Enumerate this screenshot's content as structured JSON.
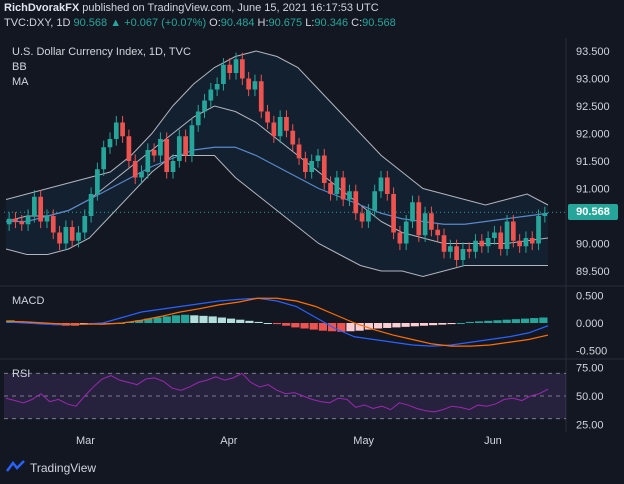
{
  "header": {
    "publisher": "RichDvorakFX",
    "published_text": "published on TradingView.com, June 15, 2021 16:17:53 UTC"
  },
  "ohlc": {
    "symbol": "TVC:DXY, 1D",
    "last": "90.568",
    "change": "▲ +0.067 (+0.07%)",
    "o_label": "O:",
    "o": "90.484",
    "h_label": "H:",
    "h": "90.675",
    "l_label": "L:",
    "l": "90.346",
    "c_label": "C:",
    "c": "90.568"
  },
  "legend": {
    "title": "U.S. Dollar Currency Index, 1D, TVC",
    "bb": "BB",
    "ma": "MA",
    "macd": "MACD",
    "rsi": "RSI"
  },
  "footer": {
    "brand": "TradingView"
  },
  "colors": {
    "up": "#26a69a",
    "down": "#ef5350",
    "band": "#b2b5be",
    "ma": "#5a88c8",
    "macd": "#2962ff",
    "signal": "#ff6d00",
    "rsi": "#9c27b0"
  },
  "chart_data": {
    "type": "candlestick",
    "title": "U.S. Dollar Currency Index, 1D, TVC",
    "x_tick_labels": [
      "Mar",
      "Apr",
      "May",
      "Jun"
    ],
    "price_axis": {
      "ticks": [
        "93.500",
        "93.000",
        "92.500",
        "92.000",
        "91.500",
        "91.000",
        "90.500",
        "90.000",
        "89.500"
      ],
      "range": [
        89.3,
        93.7
      ]
    },
    "last_price": "90.568",
    "macd_axis": {
      "ticks": [
        "0.500",
        "0.000",
        "-0.500"
      ],
      "range": [
        -0.6,
        0.6
      ]
    },
    "rsi_axis": {
      "ticks": [
        "75.00",
        "50.00",
        "25.00"
      ],
      "range": [
        20,
        80
      ]
    },
    "closes": [
      90.45,
      90.4,
      90.35,
      90.5,
      90.85,
      90.4,
      90.5,
      90.2,
      90.0,
      90.3,
      90.05,
      90.2,
      90.5,
      90.9,
      91.35,
      91.75,
      91.9,
      92.2,
      91.95,
      91.5,
      91.2,
      91.3,
      91.7,
      91.6,
      91.9,
      91.3,
      91.5,
      91.95,
      91.6,
      92.15,
      92.4,
      92.6,
      92.8,
      92.9,
      93.25,
      93.1,
      93.35,
      93.0,
      92.8,
      92.95,
      92.4,
      92.2,
      91.95,
      92.3,
      92.05,
      91.8,
      91.55,
      91.3,
      91.5,
      91.6,
      91.1,
      90.9,
      91.2,
      90.8,
      90.95,
      90.55,
      90.4,
      90.6,
      90.95,
      91.2,
      90.9,
      90.2,
      90.0,
      90.4,
      90.75,
      90.15,
      90.55,
      90.25,
      90.15,
      89.85,
      89.95,
      89.7,
      89.9,
      89.85,
      90.05,
      89.95,
      90.1,
      90.2,
      89.9,
      90.4,
      90.05,
      89.95,
      90.1,
      90.0,
      90.5,
      90.55
    ],
    "bb_upper": [
      90.8,
      90.9,
      91.0,
      91.1,
      91.2,
      91.3,
      91.6,
      92.0,
      92.5,
      92.9,
      93.2,
      93.4,
      93.5,
      93.4,
      93.2,
      92.8,
      92.4,
      92.0,
      91.6,
      91.3,
      91.0,
      90.9,
      90.8,
      90.7,
      90.8,
      90.9,
      90.7
    ],
    "bb_middle": [
      90.4,
      90.5,
      90.5,
      90.6,
      90.8,
      91.1,
      91.4,
      91.7,
      92.0,
      92.3,
      92.5,
      92.4,
      92.2,
      91.9,
      91.6,
      91.3,
      91.0,
      90.7,
      90.4,
      90.2,
      90.1,
      90.0,
      90.0,
      90.0,
      90.0,
      90.05,
      90.1
    ],
    "bb_lower": [
      89.9,
      89.8,
      89.8,
      89.9,
      90.1,
      90.5,
      90.9,
      91.3,
      91.6,
      91.6,
      91.6,
      91.2,
      90.9,
      90.6,
      90.3,
      90.0,
      89.8,
      89.6,
      89.5,
      89.5,
      89.4,
      89.5,
      89.6,
      89.6,
      89.6,
      89.6,
      89.6
    ],
    "ma": [
      90.4,
      90.4,
      90.5,
      90.6,
      90.8,
      91.0,
      91.2,
      91.4,
      91.55,
      91.7,
      91.75,
      91.75,
      91.6,
      91.4,
      91.2,
      91.0,
      90.85,
      90.7,
      90.55,
      90.45,
      90.4,
      90.35,
      90.35,
      90.4,
      90.45,
      90.5,
      90.55
    ],
    "macd_line": [
      0.02,
      0.0,
      -0.02,
      -0.03,
      -0.02,
      0.0,
      0.1,
      0.2,
      0.25,
      0.3,
      0.35,
      0.4,
      0.43,
      0.45,
      0.4,
      0.3,
      0.1,
      -0.1,
      -0.25,
      -0.3,
      -0.35,
      -0.4,
      -0.42,
      -0.4,
      -0.35,
      -0.3,
      -0.25,
      -0.18,
      -0.05
    ],
    "signal_line": [
      0.03,
      0.02,
      0.0,
      -0.02,
      -0.02,
      -0.02,
      0.0,
      0.05,
      0.12,
      0.2,
      0.26,
      0.33,
      0.38,
      0.45,
      0.45,
      0.4,
      0.3,
      0.15,
      0.0,
      -0.12,
      -0.22,
      -0.3,
      -0.38,
      -0.42,
      -0.42,
      -0.4,
      -0.35,
      -0.3,
      -0.22
    ],
    "rsi": [
      48,
      46,
      44,
      47,
      52,
      45,
      47,
      43,
      41,
      50,
      58,
      65,
      68,
      64,
      62,
      60,
      65,
      66,
      63,
      57,
      55,
      58,
      62,
      64,
      67,
      64,
      66,
      70,
      62,
      58,
      60,
      55,
      52,
      53,
      50,
      47,
      45,
      44,
      48,
      47,
      40,
      42,
      39,
      41,
      38,
      44,
      42,
      39,
      37,
      36,
      38,
      41,
      40,
      38,
      42,
      41,
      43,
      47,
      48,
      46,
      50,
      52,
      56
    ],
    "histogram": [
      0.05,
      0.03,
      0.02,
      0.0,
      -0.02,
      -0.04,
      -0.05,
      -0.05,
      -0.03,
      -0.02,
      -0.03,
      -0.02,
      0.0,
      0.02,
      0.05,
      0.08,
      0.1,
      0.12,
      0.14,
      0.15,
      0.14,
      0.13,
      0.12,
      0.1,
      0.08,
      0.06,
      0.04,
      0.02,
      0.0,
      -0.02,
      -0.05,
      -0.08,
      -0.1,
      -0.12,
      -0.14,
      -0.15,
      -0.16,
      -0.15,
      -0.14,
      -0.12,
      -0.1,
      -0.09,
      -0.08,
      -0.07,
      -0.06,
      -0.05,
      -0.04,
      -0.03,
      -0.02,
      0.0,
      0.02,
      0.03,
      0.04,
      0.05,
      0.06,
      0.07,
      0.08,
      0.09,
      0.1
    ]
  }
}
